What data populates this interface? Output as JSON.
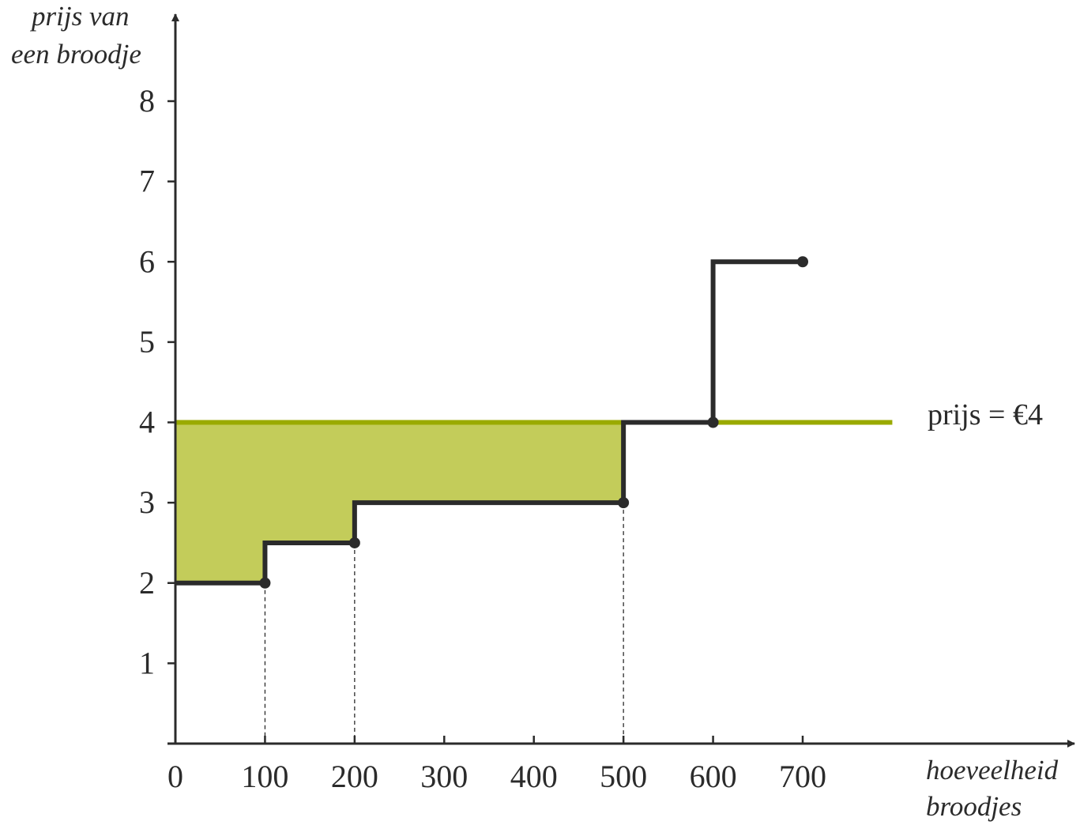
{
  "chart_data": {
    "type": "line",
    "ylabel_lines": [
      "prijs van",
      "een broodje"
    ],
    "xlabel_lines": [
      "hoeveelheid",
      "broodjes"
    ],
    "x_ticks": [
      "0",
      "100",
      "200",
      "300",
      "400",
      "500",
      "600",
      "700"
    ],
    "y_ticks": [
      "1",
      "2",
      "3",
      "4",
      "5",
      "6",
      "7",
      "8"
    ],
    "xlim": [
      0,
      1000
    ],
    "ylim": [
      0,
      8.8
    ],
    "grid": false,
    "step_series": {
      "color": "#2b2b2b",
      "points": [
        {
          "x": 0,
          "y": 2
        },
        {
          "x": 100,
          "y": 2
        },
        {
          "x": 100,
          "y": 2.5
        },
        {
          "x": 200,
          "y": 2.5
        },
        {
          "x": 200,
          "y": 3
        },
        {
          "x": 500,
          "y": 3
        },
        {
          "x": 500,
          "y": 4
        },
        {
          "x": 600,
          "y": 4
        },
        {
          "x": 600,
          "y": 6
        },
        {
          "x": 700,
          "y": 6
        }
      ],
      "dots": [
        {
          "x": 100,
          "y": 2
        },
        {
          "x": 200,
          "y": 2.5
        },
        {
          "x": 500,
          "y": 3
        },
        {
          "x": 600,
          "y": 4
        },
        {
          "x": 700,
          "y": 6
        }
      ]
    },
    "price_line": {
      "y": 4,
      "x_from": 0,
      "x_to": 800,
      "color": "#9aaa00",
      "label": "prijs = €4"
    },
    "shaded_area": {
      "color": "#c3cc5a",
      "upper_y": 4,
      "x_from": 0,
      "x_to": 500
    },
    "dashed_verticals": [
      100,
      200,
      500
    ]
  }
}
